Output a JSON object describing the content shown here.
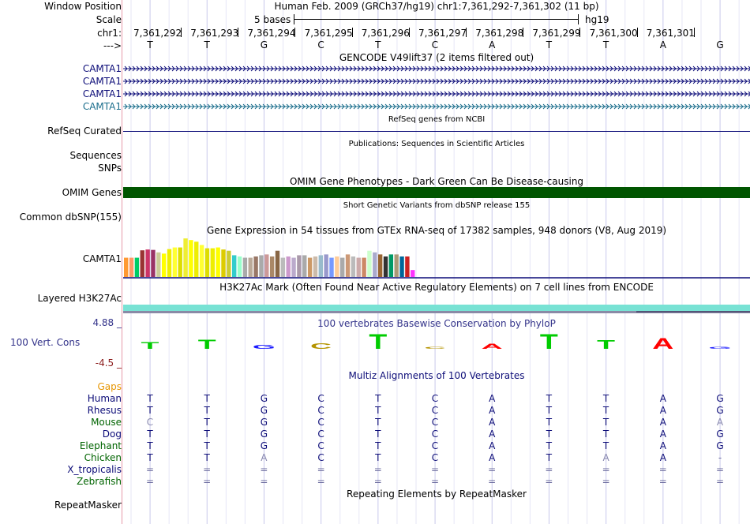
{
  "header": {
    "window_position_label": "Window Position",
    "window_position_value": "Human Feb. 2009 (GRCh37/hg19)   chr1:7,361,292-7,361,302 (11 bp)",
    "scale_label": "Scale",
    "scale_text": "5 bases",
    "scale_assembly": "hg19",
    "chrom_label": "chr1:",
    "arrow_label": "--->",
    "positions": [
      "7,361,292",
      "7,361,293",
      "7,361,294",
      "7,361,295",
      "7,361,296",
      "7,361,297",
      "7,361,298",
      "7,361,299",
      "7,361,300",
      "7,361,301"
    ],
    "bases": [
      "T",
      "T",
      "G",
      "C",
      "T",
      "C",
      "A",
      "T",
      "T",
      "A",
      "G"
    ]
  },
  "tracks": {
    "gencode": {
      "title": "GENCODE V49lift37 (2 items filtered out)",
      "items": [
        "CAMTA1",
        "CAMTA1",
        "CAMTA1",
        "CAMTA1"
      ],
      "colors": [
        "#0c0c78",
        "#0c0c78",
        "#0c0c78",
        "#1b6e8c"
      ]
    },
    "refseq": {
      "label": "RefSeq Curated",
      "title": "RefSeq genes from NCBI",
      "color": "#0c0c78"
    },
    "publications": {
      "label": "Sequences",
      "title": "Publications: Sequences in Scientific Articles"
    },
    "snps_label": "SNPs",
    "omim": {
      "label": "OMIM Genes",
      "title": "OMIM Gene Phenotypes - Dark Green Can Be Disease-causing",
      "color": "#005500"
    },
    "dbsnp": {
      "label": "Common dbSNP(155)",
      "title": "Short Genetic Variants from dbSNP release 155"
    },
    "gtex": {
      "label": "CAMTA1",
      "title": "Gene Expression in 54 tissues from GTEx RNA-seq of 17382 samples, 948 donors (V8, Aug 2019)",
      "values": [
        0.47,
        0.47,
        0.47,
        0.65,
        0.67,
        0.66,
        0.6,
        0.57,
        0.68,
        0.72,
        0.72,
        0.94,
        0.9,
        0.86,
        0.78,
        0.7,
        0.7,
        0.72,
        0.67,
        0.64,
        0.53,
        0.5,
        0.47,
        0.47,
        0.5,
        0.53,
        0.55,
        0.5,
        0.64,
        0.47,
        0.5,
        0.47,
        0.53,
        0.53,
        0.47,
        0.5,
        0.53,
        0.55,
        0.47,
        0.5,
        0.47,
        0.55,
        0.5,
        0.47,
        0.47,
        0.64,
        0.6,
        0.55,
        0.5,
        0.55,
        0.55,
        0.5,
        0.5,
        0.17
      ],
      "colors": [
        "#ff9933",
        "#ff9966",
        "#00cc66",
        "#993333",
        "#cc3366",
        "#993366",
        "#cccc99",
        "#ffff00",
        "#eeee00",
        "#ffff33",
        "#dddd00",
        "#eeee33",
        "#ffff00",
        "#eeee00",
        "#ffff33",
        "#dddd00",
        "#eeee00",
        "#ffff00",
        "#ddcc00",
        "#cccc33",
        "#33cccc",
        "#99ffcc",
        "#aaaaaa",
        "#bbaa99",
        "#997766",
        "#aaaaaa",
        "#cc9999",
        "#aa8866",
        "#886644",
        "#bbbbbb",
        "#cc99cc",
        "#bbaacc",
        "#aa99aa",
        "#aaaaaa",
        "#cc9966",
        "#ccbbaa",
        "#99bbcc",
        "#9999cc",
        "#7799ff",
        "#ffcc99",
        "#aaaaaa",
        "#cc9977",
        "#bbbbbb",
        "#ccaaaa",
        "#cc8866",
        "#ccffcc",
        "#aaaacc",
        "#996633",
        "#333333",
        "#009966",
        "#aa9977",
        "#006699",
        "#cc2222",
        "#ff33ff"
      ]
    },
    "h3k27ac": {
      "label": "Layered H3K27Ac",
      "title": "H3K27Ac Mark (Often Found Near Active Regulatory Elements) on 7 cell lines from ENCODE"
    },
    "conservation": {
      "label": "100 Vert. Cons",
      "title": "100 vertebrates Basewise Conservation by PhyloP",
      "ymax": "4.88 _",
      "ymin": "-4.5 _",
      "scores": [
        1.9,
        2.7,
        1.2,
        1.7,
        4.3,
        0.6,
        1.5,
        4.3,
        2.6,
        3.1,
        0.6
      ],
      "colors": [
        "#00cc00",
        "#00cc00",
        "#1a1aff",
        "#b59400",
        "#00cc00",
        "#b59400",
        "#ff0000",
        "#00cc00",
        "#00cc00",
        "#ff0000",
        "#1a1aff"
      ]
    },
    "multiz": {
      "title": "Multiz Alignments of 100 Vertebrates",
      "gaps_label": "Gaps",
      "species": [
        {
          "name": "Human",
          "seq": [
            "T",
            "T",
            "G",
            "C",
            "T",
            "C",
            "A",
            "T",
            "T",
            "A",
            "G"
          ]
        },
        {
          "name": "Rhesus",
          "seq": [
            "T",
            "T",
            "G",
            "C",
            "T",
            "C",
            "A",
            "T",
            "T",
            "A",
            "G"
          ]
        },
        {
          "name": "Mouse",
          "seq": [
            "C",
            "T",
            "G",
            "C",
            "T",
            "C",
            "A",
            "T",
            "T",
            "A",
            "A"
          ]
        },
        {
          "name": "Dog",
          "seq": [
            "T",
            "T",
            "G",
            "C",
            "T",
            "C",
            "A",
            "T",
            "T",
            "A",
            "G"
          ]
        },
        {
          "name": "Elephant",
          "seq": [
            "T",
            "T",
            "G",
            "C",
            "T",
            "C",
            "A",
            "T",
            "T",
            "A",
            "G"
          ]
        },
        {
          "name": "Chicken",
          "seq": [
            "T",
            "T",
            "A",
            "C",
            "T",
            "C",
            "A",
            "T",
            "A",
            "A",
            "-"
          ]
        },
        {
          "name": "X_tropicalis",
          "seq": [
            "=",
            "=",
            "=",
            "=",
            "=",
            "=",
            "=",
            "=",
            "=",
            "=",
            "="
          ]
        },
        {
          "name": "Zebrafish",
          "seq": [
            "=",
            "=",
            "=",
            "=",
            "=",
            "=",
            "=",
            "=",
            "=",
            "=",
            "="
          ]
        }
      ],
      "label_colors": [
        "#0c0c78",
        "#0c0c78",
        "#006400",
        "#0c0c78",
        "#006400",
        "#006400",
        "#0c0c78",
        "#006400"
      ]
    },
    "repeatmasker": {
      "label": "RepeatMasker",
      "title": "Repeating Elements by RepeatMasker"
    }
  }
}
